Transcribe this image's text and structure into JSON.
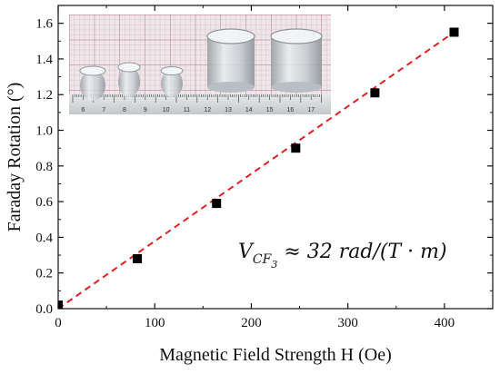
{
  "chart_data": {
    "type": "scatter",
    "xlabel": "Magnetic Field Strength H (Oe)",
    "ylabel": "Faraday Rotation (°)",
    "xlim": [
      0,
      450
    ],
    "ylim": [
      0,
      1.7
    ],
    "x_ticks": [
      0,
      100,
      200,
      300,
      400
    ],
    "y_ticks": [
      0.0,
      0.2,
      0.4,
      0.6,
      0.8,
      1.0,
      1.2,
      1.4,
      1.6
    ],
    "x_tick_labels": [
      "0",
      "100",
      "200",
      "300",
      "400"
    ],
    "y_tick_labels": [
      "0.0",
      "0.2",
      "0.4",
      "0.6",
      "0.8",
      "1.0",
      "1.2",
      "1.4",
      "1.6"
    ],
    "grid": false,
    "series": [
      {
        "marker": "square",
        "color": "#000000",
        "x": [
          0,
          82,
          164,
          246,
          328,
          410
        ],
        "y": [
          0.02,
          0.28,
          0.59,
          0.9,
          1.21,
          1.55
        ]
      },
      {
        "style": "dashed",
        "color": "#e02020",
        "x": [
          0,
          410
        ],
        "y": [
          0.0,
          1.55
        ]
      }
    ],
    "annotation": {
      "text": "V_CF3 ≈ 32 rad/(T · m)",
      "main": "V",
      "sub_main": "CF",
      "sub_sub": "3",
      "rest": " ≈ 32 rad/(T · m)"
    },
    "inset": {
      "description_icon": "photo-of-glass-rings-on-ruler",
      "ruler_labels": [
        "6",
        "7",
        "8",
        "9",
        "10",
        "11",
        "12",
        "13",
        "14",
        "15",
        "16",
        "17"
      ]
    }
  }
}
